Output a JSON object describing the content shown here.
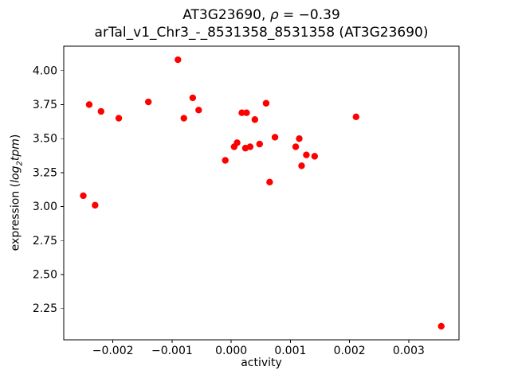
{
  "chart_data": {
    "type": "scatter",
    "title_parts": {
      "pre": "AT3G23690, ",
      "rho": "ρ",
      "post": " = −0.39"
    },
    "subtitle": "arTal_v1_Chr3_-_8531358_8531358 (AT3G23690)",
    "xlabel": "activity",
    "ylabel_parts": {
      "pre": "expression (",
      "log": "log",
      "sub": "2",
      "unit": "tpm",
      "post": ")"
    },
    "point_color": "#ff0000",
    "axis_color": "#000000",
    "grid": false,
    "legend_position": "none",
    "xlim": [
      -0.00283,
      0.00385
    ],
    "ylim": [
      2.02,
      4.18
    ],
    "xticks": {
      "values": [
        -0.002,
        -0.001,
        0.0,
        0.001,
        0.002,
        0.003
      ],
      "labels": [
        "−0.002",
        "−0.001",
        "0.000",
        "0.001",
        "0.002",
        "0.003"
      ]
    },
    "yticks": {
      "values": [
        2.25,
        2.5,
        2.75,
        3.0,
        3.25,
        3.5,
        3.75,
        4.0
      ],
      "labels": [
        "2.25",
        "2.50",
        "2.75",
        "3.00",
        "3.25",
        "3.50",
        "3.75",
        "4.00"
      ]
    },
    "points": [
      [
        -0.0025,
        3.08
      ],
      [
        -0.0024,
        3.75
      ],
      [
        -0.0023,
        3.01
      ],
      [
        -0.0022,
        3.7
      ],
      [
        -0.0019,
        3.65
      ],
      [
        -0.0014,
        3.77
      ],
      [
        -0.0009,
        4.08
      ],
      [
        -0.0008,
        3.65
      ],
      [
        -0.00065,
        3.8
      ],
      [
        -0.00055,
        3.71
      ],
      [
        -0.0001,
        3.34
      ],
      [
        5e-05,
        3.44
      ],
      [
        0.0001,
        3.47
      ],
      [
        0.00018,
        3.69
      ],
      [
        0.00026,
        3.69
      ],
      [
        0.00024,
        3.43
      ],
      [
        0.00032,
        3.44
      ],
      [
        0.0004,
        3.64
      ],
      [
        0.00048,
        3.46
      ],
      [
        0.00059,
        3.76
      ],
      [
        0.00065,
        3.18
      ],
      [
        0.00074,
        3.51
      ],
      [
        0.00109,
        3.44
      ],
      [
        0.00115,
        3.5
      ],
      [
        0.00119,
        3.3
      ],
      [
        0.00127,
        3.38
      ],
      [
        0.00141,
        3.37
      ],
      [
        0.00211,
        3.66
      ],
      [
        0.00355,
        2.12
      ]
    ]
  }
}
